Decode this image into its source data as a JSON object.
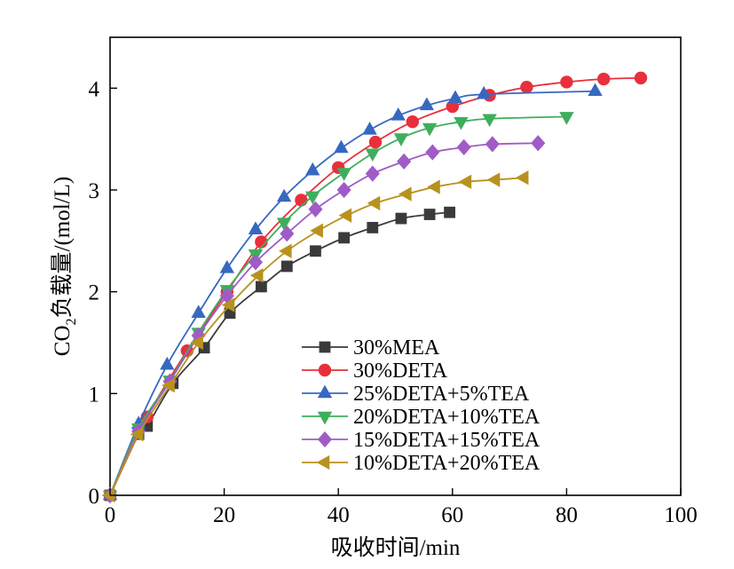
{
  "chart_data": {
    "type": "line",
    "xlabel": "吸收时间/min",
    "ylabel_main": "CO",
    "ylabel_sub": "2",
    "ylabel_rest": "负载量/(mol/L)",
    "xlim": [
      0,
      100
    ],
    "ylim": [
      0,
      4.5
    ],
    "xticks": [
      0,
      20,
      40,
      60,
      80,
      100
    ],
    "yticks": [
      0,
      1,
      2,
      3,
      4
    ],
    "xtick_labels": [
      "0",
      "20",
      "40",
      "60",
      "80",
      "100"
    ],
    "ytick_labels": [
      "0",
      "1",
      "2",
      "3",
      "4"
    ],
    "grid": false,
    "legend_position": "bottom-right",
    "series": [
      {
        "name": "30%MEA",
        "color": "#3a3a3a",
        "marker": "square",
        "x": [
          0,
          5,
          6.5,
          11,
          16.5,
          21,
          26.5,
          31,
          36,
          41,
          46,
          51,
          56,
          59.5
        ],
        "y": [
          0,
          0.6,
          0.68,
          1.1,
          1.45,
          1.79,
          2.05,
          2.25,
          2.4,
          2.53,
          2.63,
          2.72,
          2.76,
          2.78
        ]
      },
      {
        "name": "30%DETA",
        "color": "#e8303c",
        "marker": "circle",
        "x": [
          0,
          6.5,
          13.5,
          20.5,
          26.5,
          33.5,
          40,
          46.5,
          53,
          60,
          66.5,
          73,
          80,
          86.5,
          93
        ],
        "y": [
          0,
          0.77,
          1.42,
          2.0,
          2.49,
          2.9,
          3.22,
          3.47,
          3.67,
          3.82,
          3.93,
          4.01,
          4.06,
          4.09,
          4.1
        ]
      },
      {
        "name": "25%DETA+5%TEA",
        "color": "#3768c0",
        "marker": "triangle-up",
        "x": [
          0,
          5,
          10,
          15.5,
          20.5,
          25.5,
          30.5,
          35.5,
          40.5,
          45.5,
          50.5,
          55.5,
          60.5,
          65.5,
          85
        ],
        "y": [
          0,
          0.7,
          1.28,
          1.79,
          2.23,
          2.61,
          2.93,
          3.19,
          3.41,
          3.59,
          3.73,
          3.83,
          3.9,
          3.94,
          3.97
        ]
      },
      {
        "name": "20%DETA+10%TEA",
        "color": "#3fae5c",
        "marker": "triangle-down",
        "x": [
          0,
          5,
          10.5,
          15.5,
          20.5,
          25.5,
          30.5,
          35.5,
          41,
          46,
          51,
          56,
          61.5,
          66.5,
          80
        ],
        "y": [
          0,
          0.66,
          1.13,
          1.6,
          2.02,
          2.37,
          2.68,
          2.94,
          3.17,
          3.36,
          3.51,
          3.61,
          3.67,
          3.7,
          3.72
        ]
      },
      {
        "name": "15%DETA+15%TEA",
        "color": "#a05bc6",
        "marker": "diamond",
        "x": [
          0,
          5,
          10.5,
          15.5,
          20.5,
          25.5,
          31,
          36,
          41,
          46,
          51.5,
          56.5,
          62,
          67,
          75
        ],
        "y": [
          0,
          0.63,
          1.12,
          1.57,
          1.96,
          2.29,
          2.57,
          2.81,
          3.0,
          3.16,
          3.28,
          3.37,
          3.42,
          3.45,
          3.46
        ]
      },
      {
        "name": "10%DETA+20%TEA",
        "color": "#b8921e",
        "marker": "triangle-left",
        "x": [
          0,
          5,
          10.5,
          15.5,
          21,
          26,
          31,
          36.5,
          41.5,
          46.5,
          52,
          57,
          62.5,
          67.5,
          72.5
        ],
        "y": [
          0,
          0.6,
          1.08,
          1.5,
          1.87,
          2.16,
          2.4,
          2.6,
          2.75,
          2.87,
          2.96,
          3.03,
          3.08,
          3.1,
          3.12
        ]
      }
    ]
  }
}
